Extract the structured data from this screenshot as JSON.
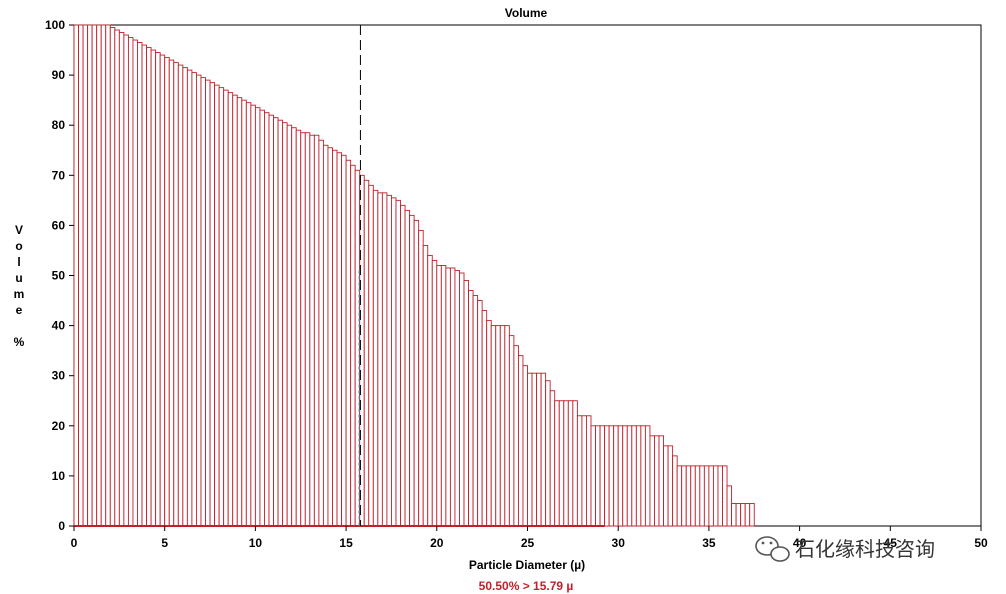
{
  "chart_data": {
    "type": "bar",
    "title": "Volume",
    "xlabel": "Particle Diameter (µ)",
    "ylabel": "Volume %",
    "xlim": [
      0,
      50
    ],
    "ylim": [
      0,
      100
    ],
    "x_ticks": [
      0,
      5,
      10,
      15,
      20,
      25,
      30,
      35,
      40,
      45,
      50
    ],
    "y_ticks": [
      0,
      10,
      20,
      30,
      40,
      50,
      60,
      70,
      80,
      90,
      100
    ],
    "bar_width": 0.25,
    "bar_color": "#c0202a",
    "x_start": 0,
    "values": [
      100,
      100,
      100,
      100,
      100,
      100,
      100,
      100,
      99.5,
      99,
      98.5,
      98,
      97.5,
      97,
      96.5,
      96,
      95.5,
      95,
      94.5,
      94,
      93.5,
      93,
      92.5,
      92,
      91.5,
      91,
      90.5,
      90,
      89.5,
      89,
      88.5,
      88,
      87.5,
      87,
      86.5,
      86,
      85.5,
      85,
      84.5,
      84,
      83.5,
      83,
      82.5,
      82,
      81.5,
      81,
      80.5,
      80,
      79.5,
      79,
      78.5,
      78.5,
      78,
      78,
      77,
      76,
      75.5,
      75,
      74.5,
      74,
      73,
      72,
      71,
      70,
      69,
      68,
      67,
      66.5,
      66.5,
      66,
      65.5,
      65,
      64,
      63,
      62,
      61,
      59,
      56,
      54,
      53,
      52,
      52,
      51.5,
      51.5,
      51,
      50.5,
      49,
      47,
      46,
      45,
      43,
      41,
      40,
      40,
      40,
      40,
      38,
      36,
      34,
      32,
      30.5,
      30.5,
      30.5,
      30.5,
      29,
      27,
      25,
      25,
      25,
      25,
      25,
      22,
      22,
      22,
      20,
      20,
      20,
      20,
      20,
      20,
      20,
      20,
      20,
      20,
      20,
      20,
      20,
      18,
      18,
      18,
      16,
      16,
      14,
      12,
      12,
      12,
      12,
      12,
      12,
      12,
      12,
      12,
      12,
      12,
      8,
      4.5,
      4.5,
      4.5,
      4.5,
      4.5
    ],
    "marker": {
      "x": 15.79,
      "style": "dashed"
    },
    "annotation": "50.50% > 15.79 µ"
  },
  "watermark": "石化缘科技咨询",
  "watermark_icon": "wechat-icon"
}
